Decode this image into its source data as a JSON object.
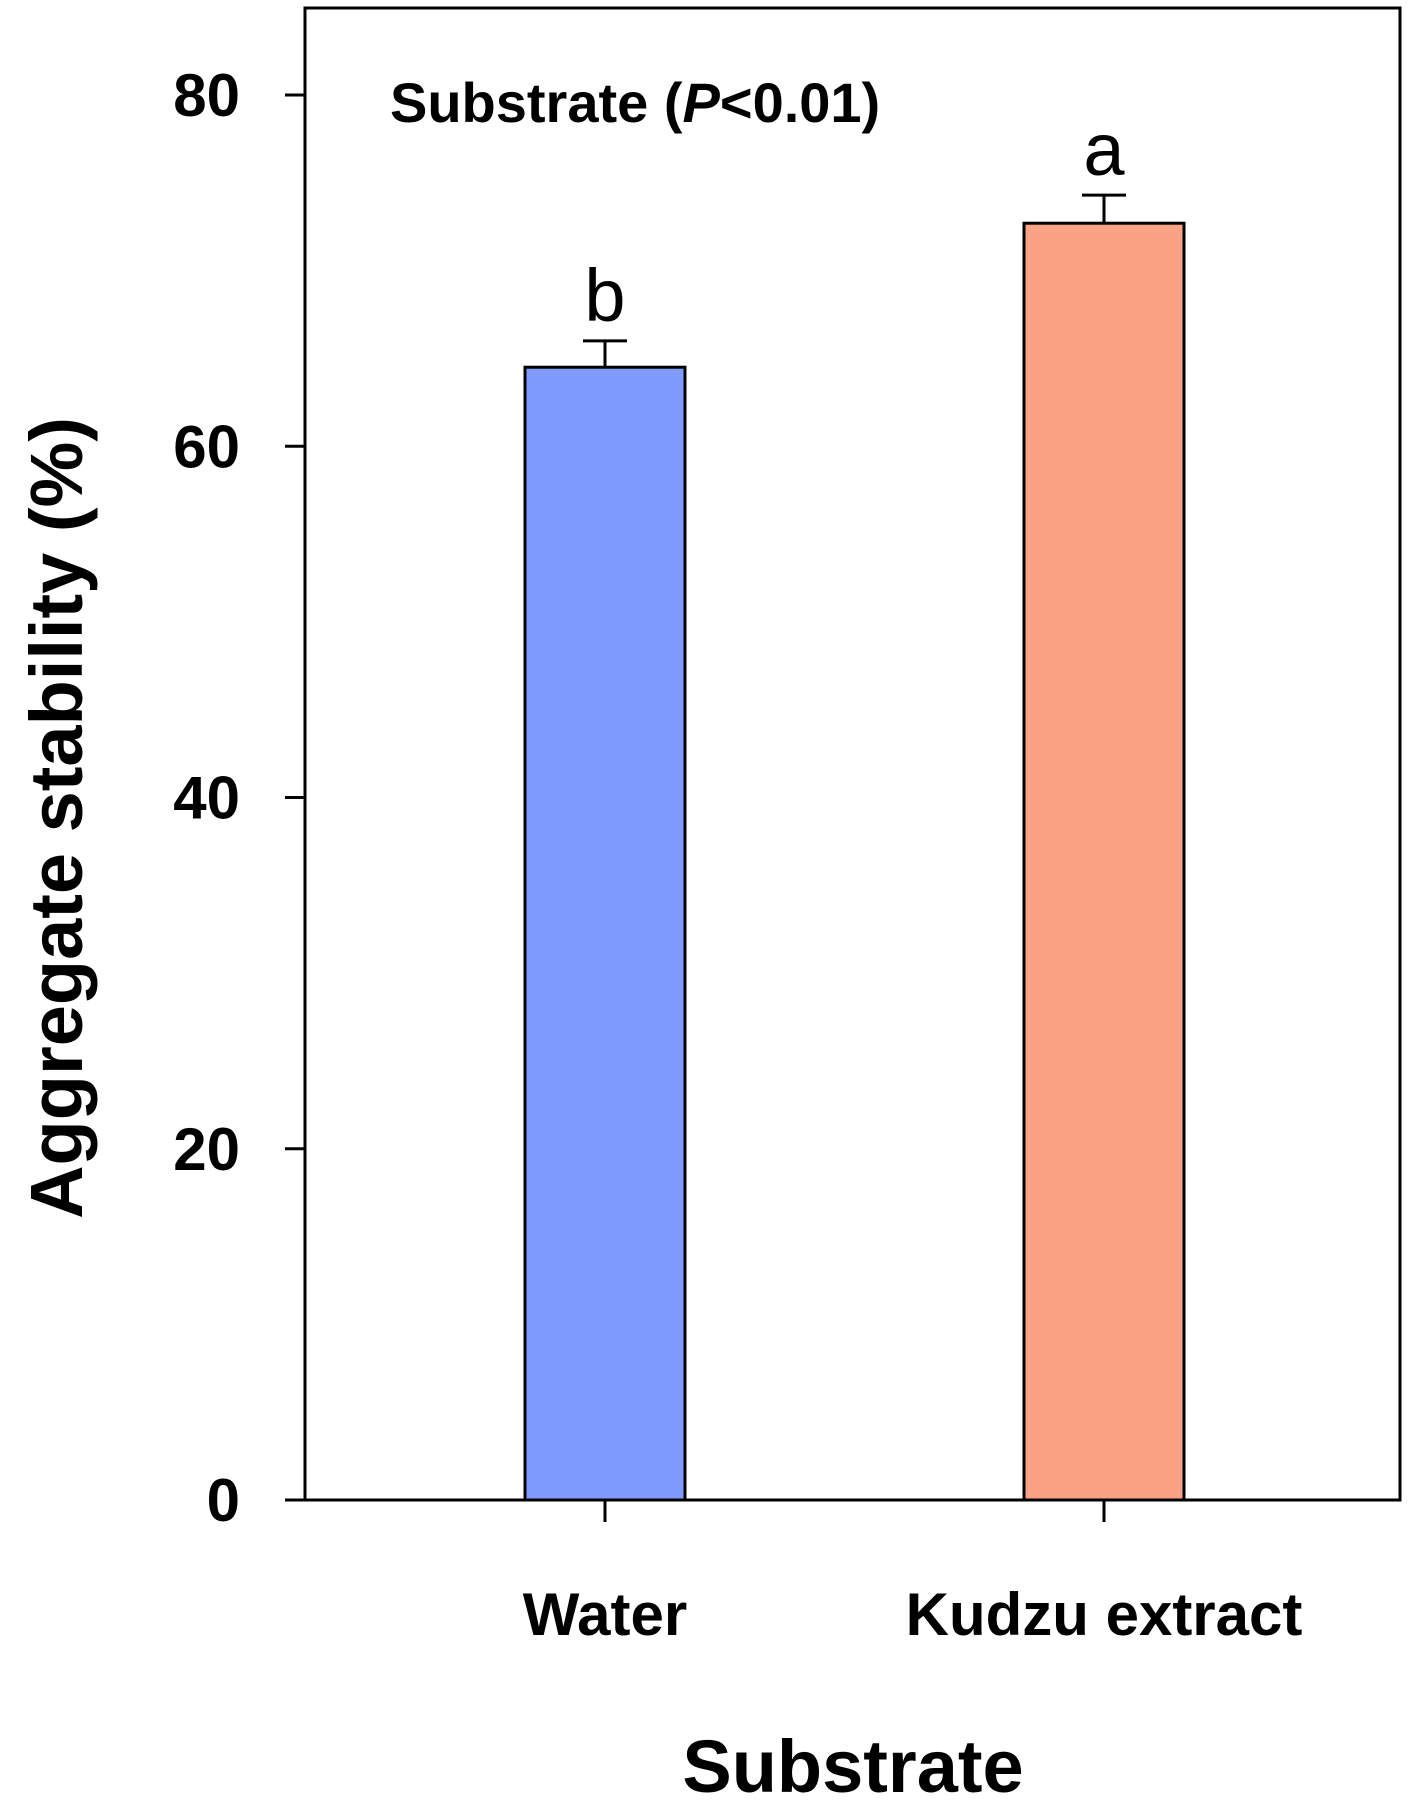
{
  "chart_data": {
    "type": "bar",
    "categories": [
      "Water",
      "Kudzu extract"
    ],
    "values": [
      64.5,
      72.7
    ],
    "error": [
      1.5,
      1.6
    ],
    "significance_letters": [
      "b",
      "a"
    ],
    "colors": [
      "#7f9bff",
      "#f9a384"
    ],
    "xlabel": "Substrate",
    "ylabel": "Aggregate stability (%)",
    "ylim": [
      0,
      80
    ],
    "yticks": [
      0,
      20,
      40,
      60,
      80
    ],
    "annotation": {
      "prefix": "Substrate (",
      "italic": "P",
      "suffix": "<0.01)"
    },
    "grid": false,
    "legend": "none"
  }
}
